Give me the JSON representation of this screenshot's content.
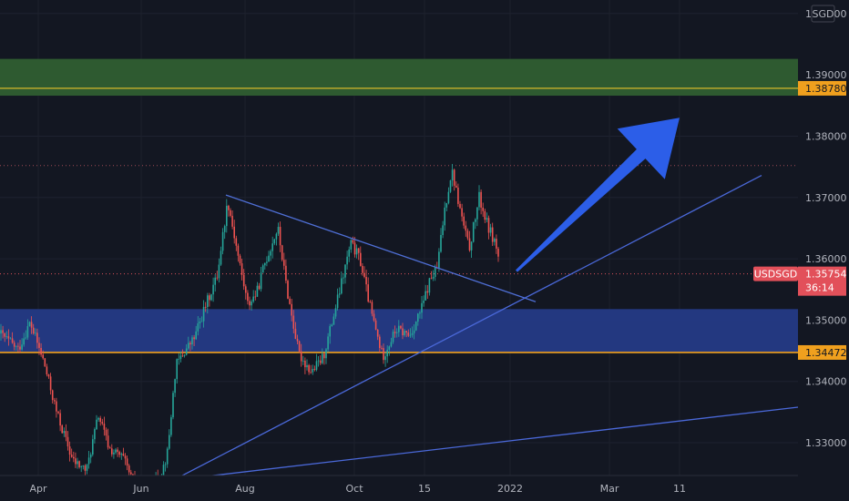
{
  "chart_data": {
    "type": "candlestick",
    "symbol": "USDSGD",
    "currency": "SGD",
    "last_price": "1.35754",
    "countdown": "36:14",
    "ylim": [
      1.3205,
      1.4022
    ],
    "y_ticks": [
      "1.40000",
      "1.39000",
      "1.38000",
      "1.37000",
      "1.36000",
      "1.35000",
      "1.34000",
      "1.33000"
    ],
    "x_ticks": [
      "Apr",
      "Jun",
      "Aug",
      "Oct",
      "15",
      "2022",
      "Mar",
      "11"
    ],
    "price_tags": [
      {
        "label": "1.38780",
        "value": 1.3878,
        "role": "resistance"
      },
      {
        "label": "1.34472",
        "value": 1.34472,
        "role": "support"
      }
    ],
    "zones": [
      {
        "name": "resistance-zone",
        "from": 1.3866,
        "to": 1.3926,
        "color": "#2f5e32"
      },
      {
        "name": "support-zone",
        "from": 1.3447,
        "to": 1.3518,
        "color": "#243a86"
      }
    ],
    "dotted_level": 1.3752,
    "series_path": [
      [
        0,
        1.3478
      ],
      [
        20,
        1.3452
      ],
      [
        33,
        1.3496
      ],
      [
        48,
        1.3432
      ],
      [
        62,
        1.335
      ],
      [
        80,
        1.327
      ],
      [
        95,
        1.3255
      ],
      [
        108,
        1.3345
      ],
      [
        120,
        1.329
      ],
      [
        135,
        1.3275
      ],
      [
        150,
        1.322
      ],
      [
        162,
        1.3228
      ],
      [
        175,
        1.324
      ],
      [
        184,
        1.3285
      ],
      [
        193,
        1.3425
      ],
      [
        203,
        1.345
      ],
      [
        213,
        1.347
      ],
      [
        226,
        1.3525
      ],
      [
        238,
        1.357
      ],
      [
        250,
        1.3695
      ],
      [
        262,
        1.36
      ],
      [
        272,
        1.3525
      ],
      [
        282,
        1.3545
      ],
      [
        290,
        1.359
      ],
      [
        305,
        1.365
      ],
      [
        315,
        1.355
      ],
      [
        328,
        1.3445
      ],
      [
        342,
        1.3415
      ],
      [
        355,
        1.344
      ],
      [
        370,
        1.353
      ],
      [
        385,
        1.3625
      ],
      [
        395,
        1.36
      ],
      [
        408,
        1.351
      ],
      [
        420,
        1.344
      ],
      [
        435,
        1.3485
      ],
      [
        450,
        1.3475
      ],
      [
        463,
        1.352
      ],
      [
        472,
        1.3565
      ],
      [
        480,
        1.3585
      ],
      [
        488,
        1.368
      ],
      [
        496,
        1.3745
      ],
      [
        505,
        1.368
      ],
      [
        515,
        1.3615
      ],
      [
        526,
        1.37
      ],
      [
        535,
        1.3655
      ],
      [
        544,
        1.3625
      ],
      [
        550,
        1.358
      ]
    ],
    "annotations": [
      {
        "type": "trendline",
        "name": "descending-trendline",
        "from": [
          248,
          1.3704
        ],
        "to": [
          588,
          1.353
        ],
        "color": "#4f6fd6"
      },
      {
        "type": "trendline",
        "name": "ascending-trendline",
        "from": [
          150,
          1.3208
        ],
        "to": [
          836,
          1.3736
        ],
        "color": "#4a68d8"
      },
      {
        "type": "trendline",
        "name": "long-term-trendline",
        "from": [
          35,
          1.3212
        ],
        "to": [
          876,
          1.3358
        ],
        "color": "#4a68d8"
      },
      {
        "type": "arrow",
        "name": "bullish-arrow",
        "from": [
          567,
          1.358
        ],
        "to": [
          746,
          1.383
        ],
        "color": "#2c5ee8"
      }
    ]
  }
}
